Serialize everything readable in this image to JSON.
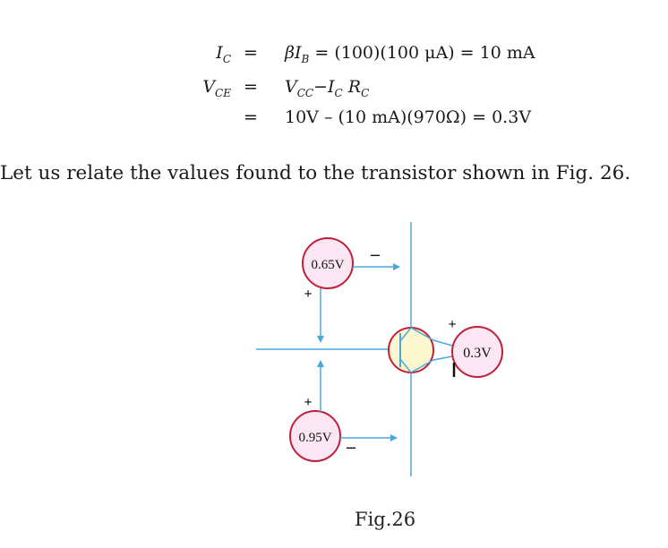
{
  "equations": {
    "line1": {
      "lhs": "I",
      "lhs_sub": "C",
      "sign": "=",
      "rhs_beta": "β",
      "rhs_I": "I",
      "rhs_I_sub": "B",
      "rhs_rest": " = (100)(100 μA) = 10 mA"
    },
    "line2": {
      "lhs": "V",
      "lhs_sub": "CE",
      "sign": "=",
      "v": "V",
      "v_sub": "CC",
      "minus": "−",
      "i": "I",
      "i_sub": "C",
      "r": " R",
      "r_sub": "C"
    },
    "line3": {
      "sign": "=",
      "rhs": "10V – (10 mA)(970Ω) = 0.3V"
    }
  },
  "paragraph": "Let us relate the values found to the transistor shown in Fig. 26.",
  "figure": {
    "labels": {
      "vbe_top": "0.65V",
      "vbe_bottom": "0.95V",
      "vce": "0.3V"
    },
    "polarity": {
      "top_minus": "–",
      "top_plus": "+",
      "bottom_plus": "+",
      "bottom_minus": "–",
      "right_plus": "+",
      "right_minus": "–"
    },
    "colors": {
      "line": "#4aa8d8",
      "bubble_fill": "#fbe6f3",
      "bubble_stroke": "#c21f3a",
      "transistor_fill": "#fdf7d0"
    }
  },
  "caption": "Fig.26"
}
